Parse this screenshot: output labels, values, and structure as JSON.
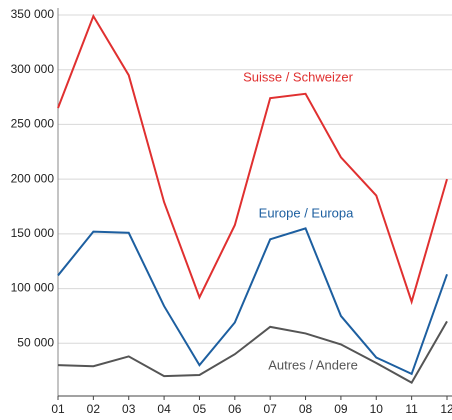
{
  "chart_data": {
    "type": "line",
    "categories": [
      "01",
      "02",
      "03",
      "04",
      "05",
      "06",
      "07",
      "08",
      "09",
      "10",
      "11",
      "12"
    ],
    "series": [
      {
        "name": "Suisse / Schweizer",
        "color": "#e03030",
        "values": [
          265000,
          349000,
          295000,
          179000,
          92000,
          158000,
          274000,
          278000,
          220000,
          185000,
          88000,
          200000
        ]
      },
      {
        "name": "Europe / Europa",
        "color": "#1d5fa0",
        "values": [
          112000,
          152000,
          151000,
          84000,
          30000,
          69000,
          145000,
          155000,
          75000,
          37000,
          22000,
          113000
        ]
      },
      {
        "name": "Autres / Andere",
        "color": "#555555",
        "values": [
          30000,
          29000,
          38000,
          20000,
          21000,
          40000,
          65000,
          59000,
          49000,
          32000,
          14000,
          70000
        ]
      }
    ],
    "ylim": [
      0,
      350000
    ],
    "yticks": [
      {
        "value": 50000,
        "label": "50 000"
      },
      {
        "value": 100000,
        "label": "100 000"
      },
      {
        "value": 150000,
        "label": "150 000"
      },
      {
        "value": 200000,
        "label": "200 000"
      },
      {
        "value": 250000,
        "label": "250 000"
      },
      {
        "value": 300000,
        "label": "300 000"
      },
      {
        "value": 350000,
        "label": "350 000"
      }
    ],
    "grid": true
  }
}
